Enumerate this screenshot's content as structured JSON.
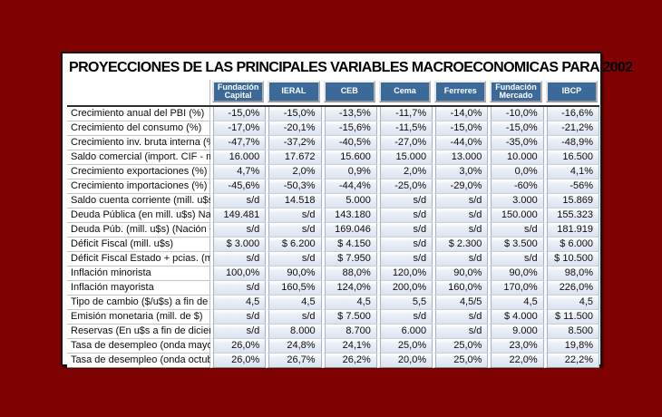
{
  "colors": {
    "page_background": "#7f0101",
    "panel_background": "#ffffff",
    "panel_border": "#141414",
    "header_button_blue": "#3b6a9a",
    "header_button_text": "#ffffff",
    "cell_fill_blue": "#d9e3ef"
  },
  "chart_data": {
    "type": "table",
    "title": "PROYECCIONES DE LAS PRINCIPALES VARIABLES MACROECONOMICAS PARA 2002",
    "columns": [
      "Fundación Capital",
      "IERAL",
      "CEB",
      "Cema",
      "Ferreres",
      "Fundación Mercado",
      "IBCP"
    ],
    "rows": [
      {
        "label": "Crecimiento anual del PBI (%)",
        "values": [
          "-15,0%",
          "-15,0%",
          "-13,5%",
          "-11,7%",
          "-14,0%",
          "-10,0%",
          "-16,6%"
        ]
      },
      {
        "label": "Crecimiento del consumo (%)",
        "values": [
          "-17,0%",
          "-20,1%",
          "-15,6%",
          "-11,5%",
          "-15,0%",
          "-15,0%",
          "-21,2%"
        ]
      },
      {
        "label": "Crecimiento inv. bruta interna (%)",
        "values": [
          "-47,7%",
          "-37,2%",
          "-40,5%",
          "-27,0%",
          "-44,0%",
          "-35,0%",
          "-48,9%"
        ]
      },
      {
        "label": "Saldo comercial (import. CIF - mill. u$s)",
        "values": [
          "16.000",
          "17.672",
          "15.600",
          "15.000",
          "13.000",
          "10.000",
          "16.500"
        ]
      },
      {
        "label": "Crecimiento exportaciones (%)",
        "values": [
          "4,7%",
          "2,0%",
          "0,9%",
          "2,0%",
          "3,0%",
          "0,0%",
          "4,1%"
        ]
      },
      {
        "label": "Crecimiento importaciones (%)",
        "values": [
          "-45,6%",
          "-50,3%",
          "-44,4%",
          "-25,0%",
          "-29,0%",
          "-60%",
          "-56%"
        ]
      },
      {
        "label": "Saldo cuenta corriente (mill. u$s)",
        "values": [
          "s/d",
          "14.518",
          "5.000",
          "s/d",
          "s/d",
          "3.000",
          "15.869"
        ]
      },
      {
        "label": "Deuda Pública (en mill. u$s) Nación",
        "values": [
          "149.481",
          "s/d",
          "143.180",
          "s/d",
          "s/d",
          "150.000",
          "155.323"
        ]
      },
      {
        "label": "Deuda Púb. (mill. u$s) (Nación + Prov.)",
        "values": [
          "s/d",
          "s/d",
          "169.046",
          "s/d",
          "s/d",
          "s/d",
          "181.919"
        ]
      },
      {
        "label": "Déficit Fiscal (mill. u$s)",
        "values": [
          "$ 3.000",
          "$ 6.200",
          "$ 4.150",
          "s/d",
          "$ 2.300",
          "$ 3.500",
          "$ 6.000"
        ]
      },
      {
        "label": "Déficit Fiscal Estado + pcias. (mill. u$s)",
        "values": [
          "s/d",
          "s/d",
          "$ 7.950",
          "s/d",
          "s/d",
          "s/d",
          "$ 10.500"
        ]
      },
      {
        "label": "Inflación minorista",
        "values": [
          "100,0%",
          "90,0%",
          "88,0%",
          "120,0%",
          "90,0%",
          "90,0%",
          "98,0%"
        ]
      },
      {
        "label": "Inflación mayorista",
        "values": [
          "s/d",
          "160,5%",
          "124,0%",
          "200,0%",
          "160,0%",
          "170,0%",
          "226,0%"
        ]
      },
      {
        "label": "Tipo de cambio ($/u$s) a fin de año",
        "values": [
          "4,5",
          "4,5",
          "4,5",
          "5,5",
          "4,5/5",
          "4,5",
          "4,5"
        ]
      },
      {
        "label": "Emisión monetaria (mill. de $)",
        "values": [
          "s/d",
          "s/d",
          "$ 7.500",
          "s/d",
          "s/d",
          "$ 4.000",
          "$ 11.500"
        ]
      },
      {
        "label": "Reservas (En u$s a fin de diciembre)",
        "values": [
          "s/d",
          "8.000",
          "8.700",
          "6.000",
          "s/d",
          "9.000",
          "8.500"
        ]
      },
      {
        "label": "Tasa de desempleo (onda mayo)",
        "values": [
          "26,0%",
          "24,8%",
          "24,1%",
          "25,0%",
          "25,0%",
          "23,0%",
          "19,8%"
        ]
      },
      {
        "label": "Tasa de desempleo (onda octubre)",
        "values": [
          "26,0%",
          "26,7%",
          "26,2%",
          "20,0%",
          "25,0%",
          "22,0%",
          "22,2%"
        ]
      }
    ]
  }
}
